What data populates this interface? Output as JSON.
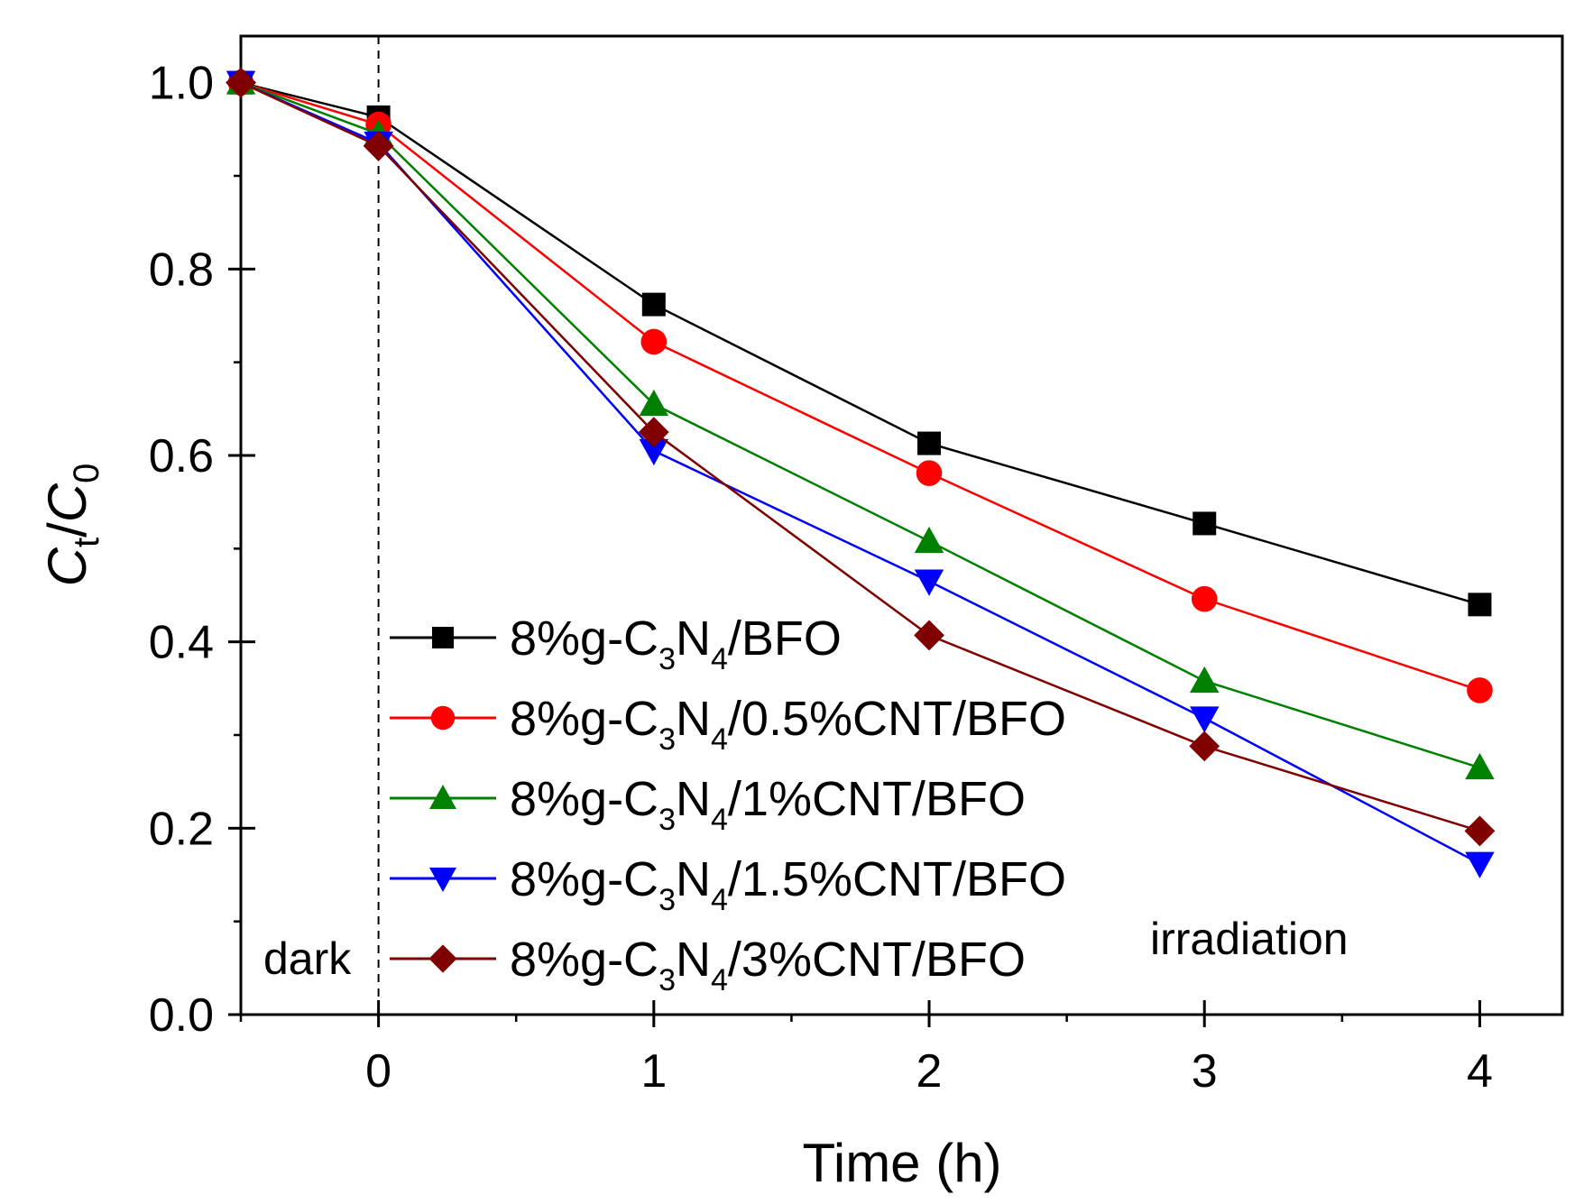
{
  "chart_data": {
    "type": "line",
    "xlabel": "Time (h)",
    "ylabel": {
      "main": "C",
      "sub_t": "t",
      "slash": "/",
      "main2": "C",
      "sub_0": "0"
    },
    "xlim": [
      -0.5,
      4.3
    ],
    "ylim": [
      0.0,
      1.05
    ],
    "x_ticks": [
      0,
      1,
      2,
      3,
      4
    ],
    "x_tick_labels": [
      "0",
      "1",
      "2",
      "3",
      "4"
    ],
    "y_ticks": [
      0.0,
      0.2,
      0.4,
      0.6,
      0.8,
      1.0
    ],
    "y_tick_labels": [
      "0.0",
      "0.2",
      "0.4",
      "0.6",
      "0.8",
      "1.0"
    ],
    "x": [
      -0.5,
      0,
      1,
      2,
      3,
      4
    ],
    "series": [
      {
        "name": "8%g-C3N4/BFO",
        "label_parts": [
          "8%g-C",
          "3",
          "N",
          "4",
          "/BFO"
        ],
        "color": "#000000",
        "marker": "square",
        "values": [
          1.0,
          0.963,
          0.762,
          0.613,
          0.527,
          0.44
        ]
      },
      {
        "name": "8%g-C3N4/0.5%CNT/BFO",
        "label_parts": [
          "8%g-C",
          "3",
          "N",
          "4",
          "/0.5%CNT/BFO"
        ],
        "color": "#ff0000",
        "marker": "circle",
        "values": [
          1.0,
          0.955,
          0.722,
          0.581,
          0.446,
          0.348
        ]
      },
      {
        "name": "8%g-C3N4/1%CNT/BFO",
        "label_parts": [
          "8%g-C",
          "3",
          "N",
          "4",
          "/1%CNT/BFO"
        ],
        "color": "#008000",
        "marker": "triangle-up",
        "values": [
          1.0,
          0.945,
          0.655,
          0.508,
          0.358,
          0.265
        ]
      },
      {
        "name": "8%g-C3N4/1.5%CNT/BFO",
        "label_parts": [
          "8%g-C",
          "3",
          "N",
          "4",
          "/1.5%CNT/BFO"
        ],
        "color": "#0000ff",
        "marker": "triangle-down",
        "values": [
          1.0,
          0.935,
          0.605,
          0.465,
          0.318,
          0.162
        ]
      },
      {
        "name": "8%g-C3N4/3%CNT/BFO",
        "label_parts": [
          "8%g-C",
          "3",
          "N",
          "4",
          "/3%CNT/BFO"
        ],
        "color": "#800000",
        "marker": "diamond",
        "values": [
          1.0,
          0.932,
          0.625,
          0.407,
          0.288,
          0.197
        ]
      }
    ],
    "annotations": {
      "dark": "dark",
      "irradiation": "irradiation"
    },
    "divider_x": 0,
    "legend_position": "lower-center",
    "grid": false
  }
}
